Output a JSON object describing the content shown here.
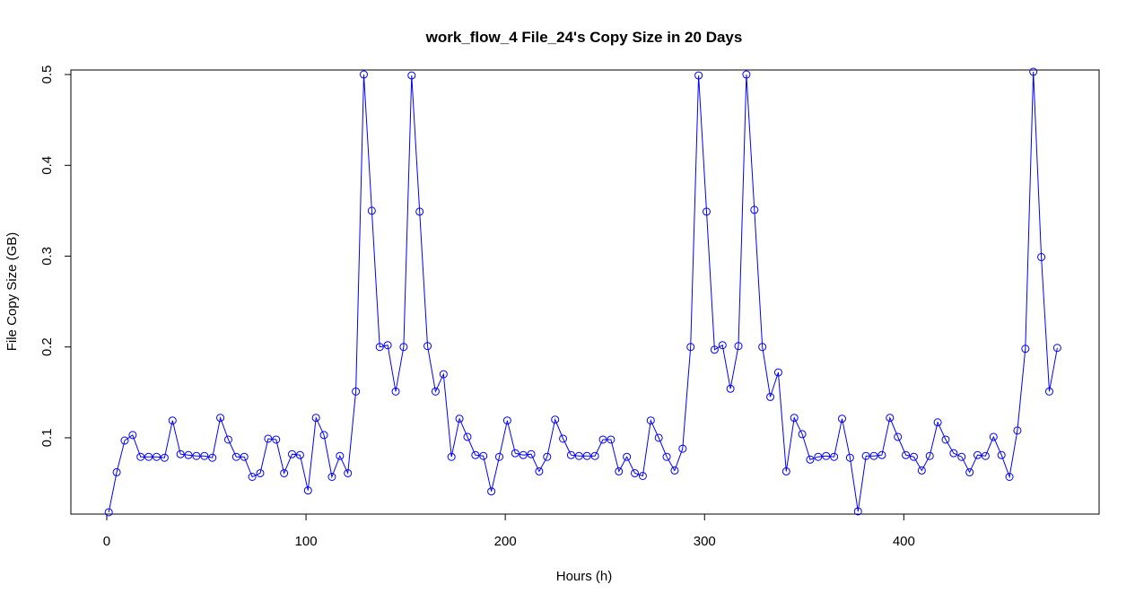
{
  "chart_data": {
    "type": "line",
    "title": "work_flow_4 File_24's Copy Size in 20 Days",
    "xlabel": "Hours (h)",
    "ylabel": "File Copy Size (GB)",
    "xlim": [
      -18,
      498
    ],
    "ylim": [
      0.016,
      0.505
    ],
    "x_ticks": [
      0,
      100,
      200,
      300,
      400
    ],
    "y_ticks": [
      0.1,
      0.2,
      0.3,
      0.4,
      0.5
    ],
    "grid": false,
    "legend": "none",
    "series": [
      {
        "color": "#0000ff",
        "marker": "open-circle",
        "x": [
          1,
          5,
          9,
          13,
          17,
          21,
          25,
          29,
          33,
          37,
          41,
          45,
          49,
          53,
          57,
          61,
          65,
          69,
          73,
          77,
          81,
          85,
          89,
          93,
          97,
          101,
          105,
          109,
          113,
          117,
          121,
          125,
          129,
          133,
          137,
          141,
          145,
          149,
          153,
          157,
          161,
          165,
          169,
          173,
          177,
          181,
          185,
          189,
          193,
          197,
          201,
          205,
          209,
          213,
          217,
          221,
          225,
          229,
          233,
          237,
          241,
          245,
          249,
          253,
          257,
          261,
          265,
          269,
          273,
          277,
          281,
          285,
          289,
          293,
          297,
          301,
          305,
          309,
          313,
          317,
          321,
          325,
          329,
          333,
          337,
          341,
          345,
          349,
          353,
          357,
          361,
          365,
          369,
          373,
          377,
          381,
          385,
          389,
          393,
          397,
          401,
          405,
          409,
          413,
          417,
          421,
          425,
          429,
          433,
          437,
          441,
          445,
          449,
          453,
          457,
          461,
          465,
          469,
          473,
          477
        ],
        "values": [
          0.018,
          0.062,
          0.097,
          0.103,
          0.079,
          0.079,
          0.079,
          0.078,
          0.119,
          0.082,
          0.081,
          0.08,
          0.08,
          0.078,
          0.122,
          0.098,
          0.079,
          0.079,
          0.057,
          0.061,
          0.099,
          0.098,
          0.061,
          0.082,
          0.081,
          0.042,
          0.122,
          0.103,
          0.057,
          0.08,
          0.061,
          0.151,
          0.5,
          0.35,
          0.2,
          0.202,
          0.151,
          0.2,
          0.499,
          0.349,
          0.201,
          0.151,
          0.17,
          0.079,
          0.121,
          0.101,
          0.081,
          0.08,
          0.041,
          0.079,
          0.119,
          0.083,
          0.081,
          0.082,
          0.063,
          0.079,
          0.12,
          0.099,
          0.081,
          0.08,
          0.08,
          0.08,
          0.098,
          0.098,
          0.063,
          0.079,
          0.061,
          0.058,
          0.119,
          0.1,
          0.079,
          0.064,
          0.088,
          0.2,
          0.499,
          0.349,
          0.197,
          0.202,
          0.154,
          0.201,
          0.5,
          0.351,
          0.2,
          0.145,
          0.172,
          0.063,
          0.122,
          0.104,
          0.076,
          0.079,
          0.08,
          0.079,
          0.121,
          0.078,
          0.019,
          0.08,
          0.08,
          0.081,
          0.122,
          0.101,
          0.081,
          0.079,
          0.064,
          0.08,
          0.117,
          0.098,
          0.083,
          0.079,
          0.062,
          0.081,
          0.08,
          0.101,
          0.081,
          0.057,
          0.108,
          0.198,
          0.503,
          0.299,
          0.151,
          0.199
        ]
      }
    ]
  }
}
